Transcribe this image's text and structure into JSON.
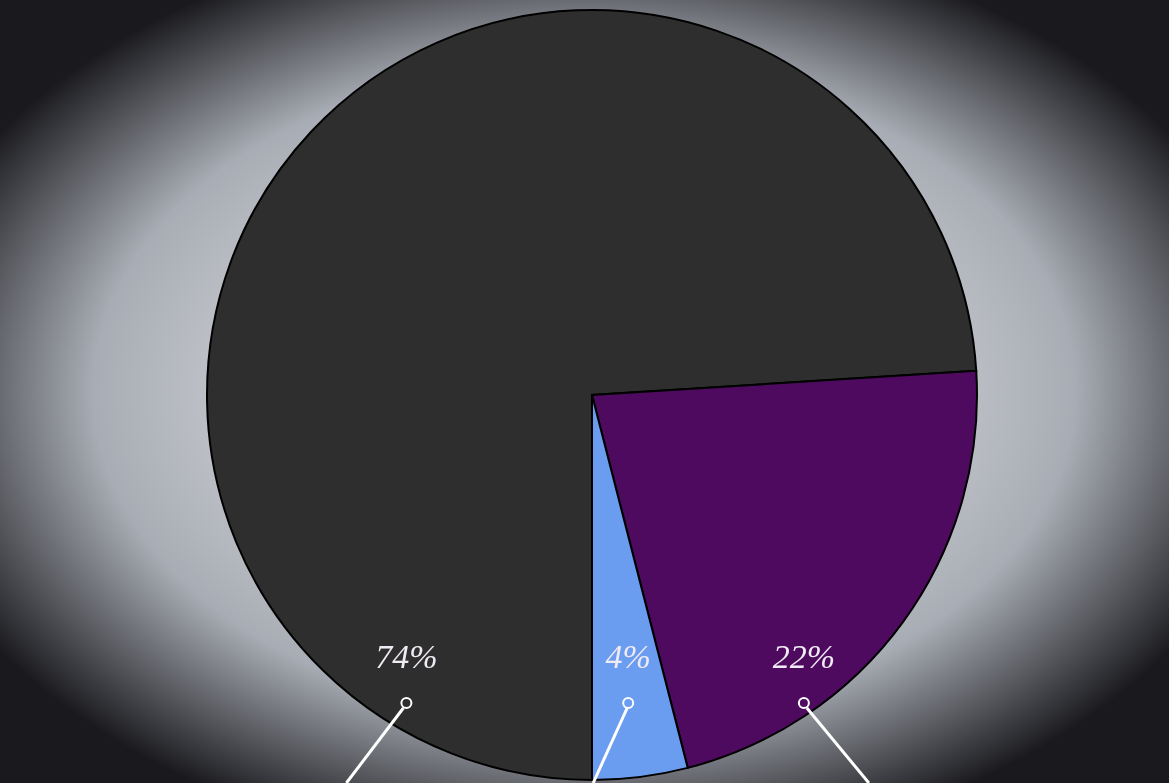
{
  "chart_data": {
    "type": "pie",
    "categories": [
      null,
      null,
      null
    ],
    "values": [
      74,
      22,
      4
    ],
    "colors": [
      "#2e2e2e",
      "#4e0a5e",
      "#6a9cf0"
    ],
    "value_labels": [
      "74%",
      "22%",
      "4%"
    ]
  }
}
